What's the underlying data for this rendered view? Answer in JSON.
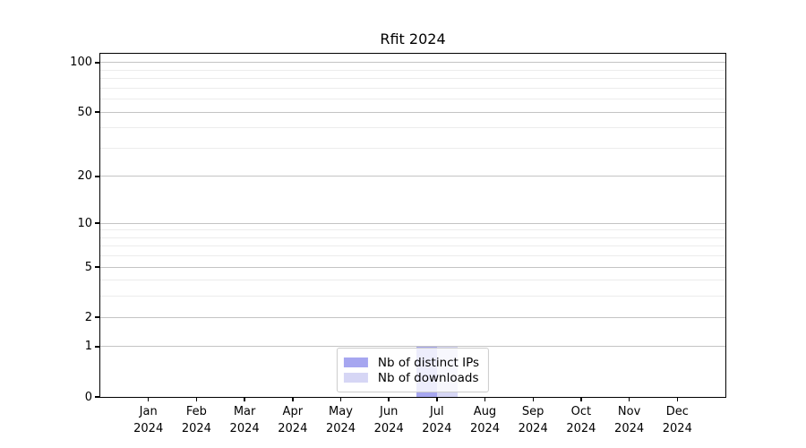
{
  "chart_data": {
    "type": "bar",
    "title": "Rfit 2024",
    "categories": [
      "Jan 2024",
      "Feb 2024",
      "Mar 2024",
      "Apr 2024",
      "May 2024",
      "Jun 2024",
      "Jul 2024",
      "Aug 2024",
      "Sep 2024",
      "Oct 2024",
      "Nov 2024",
      "Dec 2024"
    ],
    "series": [
      {
        "name": "Nb of distinct IPs",
        "color": "#a6a6f0",
        "values": [
          0,
          0,
          0,
          0,
          0,
          0,
          1,
          0,
          0,
          0,
          0,
          0
        ]
      },
      {
        "name": "Nb of downloads",
        "color": "#d6d6f5",
        "values": [
          0,
          0,
          0,
          0,
          0,
          0,
          1,
          0,
          0,
          0,
          0,
          0
        ]
      }
    ],
    "xlabel": "",
    "ylabel": "",
    "yscale": "log1p",
    "ylim": [
      0,
      113
    ],
    "y_major_ticks": [
      0,
      1,
      2,
      5,
      10,
      20,
      50,
      100
    ],
    "y_minor_ticks": [
      3,
      4,
      6,
      7,
      8,
      9,
      30,
      40,
      60,
      70,
      80,
      90
    ],
    "grid": true,
    "legend_position": "lower center"
  },
  "colors": {
    "background": "#ffffff",
    "spine": "#000000",
    "grid_major": "#c4c4c4",
    "grid_minor": "#ececec",
    "tick_text": "#000000",
    "legend_border": "#cccccc",
    "legend_background": "rgba(255,255,255,0.8)"
  }
}
